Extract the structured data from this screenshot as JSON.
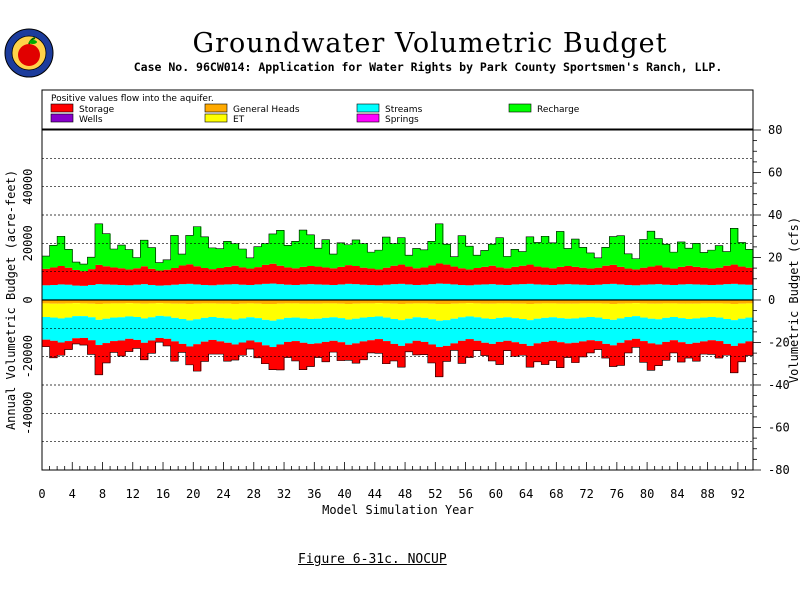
{
  "header": {
    "title": "Groundwater Volumetric Budget",
    "subtitle": "Case No. 96CW014: Application for Water Rights by Park County Sportsmen's Ranch, LLP."
  },
  "caption": "Figure 6-31c.   NOCUP",
  "colors": {
    "storage": "#ff0000",
    "general_heads": "#ffaa00",
    "streams": "#00ffff",
    "recharge": "#00ff00",
    "wells": "#8800cc",
    "et": "#ffff00",
    "springs": "#ff00ff"
  },
  "chart_data": {
    "type": "area",
    "legend_note": "Positive values flow into the aquifer.",
    "legend": [
      {
        "name": "Storage",
        "color": "#ff0000"
      },
      {
        "name": "General Heads",
        "color": "#ffaa00"
      },
      {
        "name": "Streams",
        "color": "#00ffff"
      },
      {
        "name": "Recharge",
        "color": "#00ff00"
      },
      {
        "name": "Wells",
        "color": "#8800cc"
      },
      {
        "name": "ET",
        "color": "#ffff00"
      },
      {
        "name": "Springs",
        "color": "#ff00ff"
      }
    ],
    "legend_position": "top",
    "xlabel": "Model Simulation Year",
    "ylabel_left": "Annual Volumetric Budget (acre-feet)",
    "ylabel_right": "Volumetric Budget (cfs)",
    "xlim": [
      0,
      94
    ],
    "ylim_left": [
      -60000,
      60000
    ],
    "ylim_right": [
      -80,
      80
    ],
    "x_ticks": [
      0,
      4,
      8,
      12,
      16,
      20,
      24,
      28,
      32,
      36,
      40,
      44,
      48,
      52,
      56,
      60,
      64,
      68,
      72,
      76,
      80,
      84,
      88,
      92
    ],
    "x_tick_labels": [
      "0",
      "4",
      "8",
      "12",
      "16",
      "20",
      "24",
      "28",
      "32",
      "36",
      "40",
      "44",
      "48",
      "52",
      "56",
      "60",
      "64",
      "68",
      "72",
      "76",
      "80",
      "84",
      "88",
      "92"
    ],
    "y_left_ticks": [
      -40000,
      -20000,
      0,
      20000,
      40000
    ],
    "y_left_tick_labels": [
      "-40000",
      "-20000",
      "0",
      "20000",
      "40000"
    ],
    "y_right_ticks": [
      -80,
      -60,
      -40,
      -20,
      0,
      20,
      40,
      60,
      80
    ],
    "y_right_tick_labels": [
      "-80",
      "-60",
      "-40",
      "-20",
      "0",
      "20",
      "40",
      "60",
      "80"
    ],
    "grid": "dashed horizontal",
    "series": [
      {
        "name": "Streams",
        "color": "#00ffff",
        "side": "inflow",
        "values": [
          5200,
          5300,
          5500,
          5400,
          5100,
          5000,
          5300,
          5600,
          5500,
          5400,
          5300,
          5200,
          5400,
          5600,
          5300,
          5100,
          5200,
          5400,
          5600,
          5700,
          5500,
          5300,
          5200,
          5400,
          5500,
          5600,
          5400,
          5300,
          5500,
          5700,
          5800,
          5600,
          5400,
          5300,
          5500,
          5600,
          5500,
          5400,
          5300,
          5500,
          5700,
          5600,
          5400,
          5300,
          5200,
          5400,
          5600,
          5700,
          5500,
          5300,
          5400,
          5600,
          5800,
          5700,
          5500,
          5300,
          5200,
          5400,
          5500,
          5600,
          5400,
          5300,
          5500,
          5600,
          5700,
          5500,
          5400,
          5300,
          5500,
          5600,
          5500,
          5400,
          5300,
          5400,
          5600,
          5700,
          5500,
          5300,
          5200,
          5400,
          5500,
          5600,
          5400,
          5300,
          5500,
          5600,
          5500,
          5400,
          5300,
          5400,
          5600,
          5700,
          5500,
          5400
        ]
      },
      {
        "name": "Storage",
        "color": "#ff0000",
        "side": "inflow",
        "values": [
          5800,
          6200,
          6500,
          6000,
          5500,
          5200,
          5600,
          6800,
          6400,
          6100,
          5900,
          5600,
          5800,
          6300,
          5700,
          5300,
          5500,
          5900,
          6600,
          6900,
          6400,
          6000,
          5700,
          5900,
          6200,
          6500,
          6100,
          5800,
          6100,
          6700,
          7000,
          6500,
          6100,
          5900,
          6200,
          6400,
          6300,
          6100,
          5900,
          6200,
          6600,
          6400,
          6000,
          5800,
          5600,
          6000,
          6500,
          6800,
          6300,
          5900,
          6100,
          6600,
          7100,
          6800,
          6300,
          5900,
          5600,
          5900,
          6200,
          6500,
          6100,
          5900,
          6200,
          6500,
          6800,
          6300,
          6100,
          5900,
          6200,
          6400,
          6200,
          6000,
          5800,
          6000,
          6500,
          6700,
          6200,
          5800,
          5600,
          6000,
          6300,
          6600,
          6100,
          5800,
          6200,
          6500,
          6200,
          6000,
          5800,
          6000,
          6500,
          6800,
          6300,
          6000
        ]
      },
      {
        "name": "Recharge",
        "color": "#00ff00",
        "side": "inflow",
        "values": [
          4500,
          7800,
          10500,
          6500,
          2800,
          2500,
          4200,
          14500,
          11500,
          6500,
          8200,
          7000,
          3800,
          9200,
          7500,
          2800,
          3500,
          11500,
          4000,
          10200,
          14000,
          11000,
          7500,
          6800,
          9000,
          7800,
          6500,
          3800,
          7200,
          7500,
          10500,
          12500,
          7800,
          9500,
          13000,
          11000,
          6500,
          9800,
          5000,
          8500,
          7200,
          9200,
          8500,
          5800,
          6800,
          10800,
          7800,
          9500,
          4000,
          7000,
          6200,
          8500,
          14000,
          7200,
          3500,
          11500,
          8200,
          4500,
          5800,
          7600,
          10500,
          4200,
          6200,
          5000,
          9800,
          8500,
          11000,
          9000,
          12500,
          6200,
          9800,
          7200,
          5500,
          3500,
          6500,
          10000,
          11000,
          5200,
          3800,
          10000,
          12500,
          9500,
          8200,
          5800,
          8800,
          6200,
          8300,
          5400,
          6500,
          7800,
          5000,
          12800,
          8500,
          6500
        ]
      },
      {
        "name": "General Heads",
        "color": "#ffaa00",
        "side": "outflow",
        "values": [
          1200,
          1300,
          1300,
          1200,
          1100,
          1200,
          1300,
          1400,
          1300,
          1200,
          1200,
          1100,
          1200,
          1300,
          1200,
          1100,
          1200,
          1300,
          1300,
          1400,
          1300,
          1200,
          1200,
          1300,
          1300,
          1400,
          1300,
          1200,
          1300,
          1400,
          1400,
          1300,
          1200,
          1200,
          1300,
          1300,
          1300,
          1200,
          1200,
          1300,
          1400,
          1300,
          1200,
          1200,
          1100,
          1200,
          1300,
          1400,
          1300,
          1200,
          1200,
          1300,
          1400,
          1400,
          1300,
          1200,
          1100,
          1200,
          1300,
          1300,
          1200,
          1200,
          1300,
          1300,
          1400,
          1300,
          1200,
          1200,
          1300,
          1300,
          1300,
          1200,
          1200,
          1200,
          1300,
          1400,
          1300,
          1200,
          1100,
          1200,
          1300,
          1300,
          1200,
          1200,
          1300,
          1300,
          1300,
          1200,
          1200,
          1200,
          1300,
          1400,
          1300,
          1200
        ]
      },
      {
        "name": "ET",
        "color": "#ffff00",
        "side": "outflow",
        "values": [
          4800,
          4900,
          5200,
          5000,
          4600,
          4500,
          4800,
          5600,
          5300,
          5000,
          4900,
          4700,
          4800,
          5200,
          4900,
          4500,
          4600,
          5000,
          5400,
          5800,
          5500,
          5100,
          4800,
          5000,
          5200,
          5500,
          5200,
          4900,
          5100,
          5600,
          5900,
          5500,
          5100,
          5000,
          5200,
          5400,
          5300,
          5100,
          4900,
          5100,
          5500,
          5300,
          5000,
          4800,
          4700,
          5000,
          5400,
          5700,
          5300,
          4900,
          5100,
          5500,
          5900,
          5700,
          5300,
          4900,
          4700,
          4900,
          5200,
          5400,
          5100,
          4900,
          5100,
          5400,
          5700,
          5300,
          5100,
          4900,
          5100,
          5300,
          5200,
          5000,
          4800,
          5000,
          5400,
          5600,
          5200,
          4800,
          4600,
          5000,
          5300,
          5500,
          5100,
          4800,
          5100,
          5400,
          5200,
          5000,
          4800,
          5000,
          5400,
          5700,
          5300,
          5000
        ]
      },
      {
        "name": "Streams",
        "color": "#00ffff",
        "side": "outflow",
        "values": [
          8000,
          8200,
          8500,
          8300,
          7800,
          7700,
          8100,
          8900,
          8600,
          8300,
          8200,
          7900,
          8100,
          8600,
          8200,
          7800,
          7900,
          8300,
          8800,
          9200,
          8800,
          8400,
          8100,
          8300,
          8600,
          8800,
          8500,
          8200,
          8500,
          9000,
          9300,
          8900,
          8500,
          8300,
          8600,
          8800,
          8700,
          8500,
          8300,
          8500,
          8900,
          8700,
          8400,
          8200,
          8000,
          8300,
          8800,
          9100,
          8700,
          8300,
          8500,
          8900,
          9300,
          9100,
          8700,
          8300,
          8000,
          8300,
          8600,
          8800,
          8500,
          8300,
          8500,
          8800,
          9100,
          8700,
          8500,
          8300,
          8500,
          8700,
          8600,
          8400,
          8200,
          8300,
          8800,
          9000,
          8600,
          8200,
          8000,
          8300,
          8700,
          8900,
          8500,
          8200,
          8500,
          8800,
          8600,
          8400,
          8200,
          8300,
          8800,
          9100,
          8700,
          8400
        ]
      },
      {
        "name": "Storage",
        "color": "#ff0000",
        "side": "outflow",
        "values": [
          2500,
          6000,
          4500,
          3000,
          2000,
          2500,
          5000,
          10500,
          7000,
          4000,
          5500,
          4500,
          3000,
          6000,
          4500,
          1500,
          2500,
          7000,
          3000,
          6500,
          9500,
          7000,
          5000,
          4500,
          6500,
          5500,
          4500,
          3000,
          5500,
          6500,
          8000,
          9000,
          5500,
          7000,
          9500,
          8000,
          5000,
          7000,
          4000,
          6500,
          5500,
          7000,
          6500,
          4500,
          5000,
          8000,
          6000,
          7500,
          3000,
          5000,
          4500,
          6500,
          10500,
          5500,
          2500,
          8000,
          6500,
          3500,
          4500,
          6000,
          8000,
          3500,
          5000,
          4000,
          7500,
          6500,
          8000,
          7000,
          9000,
          5000,
          7000,
          5500,
          4500,
          3000,
          5000,
          7500,
          8000,
          4500,
          3000,
          7500,
          9500,
          7500,
          6500,
          4500,
          7000,
          5000,
          6500,
          4500,
          5000,
          6000,
          4000,
          9500,
          6500,
          5000
        ]
      }
    ]
  }
}
